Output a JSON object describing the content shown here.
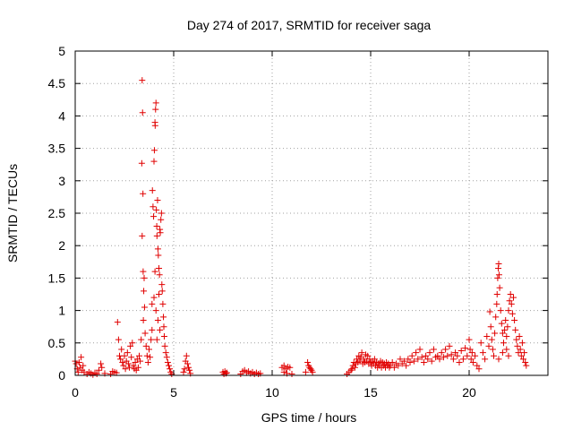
{
  "chart_data": {
    "type": "scatter",
    "title": "Day 274 of 2017, SRMTID for receiver saga",
    "xlabel": "GPS time / hours",
    "ylabel": "SRMTID / TECUs",
    "xlim": [
      0,
      24
    ],
    "ylim": [
      0,
      5
    ],
    "x_ticks": [
      "0",
      "5",
      "10",
      "15",
      "20"
    ],
    "y_ticks": [
      "0",
      "0.5",
      "1",
      "1.5",
      "2",
      "2.5",
      "3",
      "3.5",
      "4",
      "4.5",
      "5"
    ],
    "grid": true,
    "marker": "plus",
    "color": "#e00000",
    "series": [
      {
        "points": [
          [
            0.0,
            0.22
          ],
          [
            0.05,
            0.18
          ],
          [
            0.1,
            0.1
          ],
          [
            0.15,
            0.05
          ],
          [
            0.2,
            0.2
          ],
          [
            0.25,
            0.12
          ],
          [
            0.3,
            0.28
          ],
          [
            0.35,
            0.08
          ],
          [
            0.4,
            0.15
          ],
          [
            0.45,
            0.05
          ],
          [
            0.6,
            0.02
          ],
          [
            0.7,
            0.05
          ],
          [
            0.8,
            0.03
          ],
          [
            0.9,
            0.01
          ],
          [
            1.0,
            0.04
          ],
          [
            1.1,
            0.02
          ],
          [
            1.2,
            0.08
          ],
          [
            1.3,
            0.18
          ],
          [
            1.35,
            0.12
          ],
          [
            1.5,
            0.03
          ],
          [
            1.8,
            0.02
          ],
          [
            1.9,
            0.06
          ],
          [
            2.0,
            0.05
          ],
          [
            2.1,
            0.04
          ],
          [
            2.15,
            0.82
          ],
          [
            2.2,
            0.55
          ],
          [
            2.25,
            0.3
          ],
          [
            2.3,
            0.25
          ],
          [
            2.35,
            0.4
          ],
          [
            2.4,
            0.2
          ],
          [
            2.45,
            0.15
          ],
          [
            2.5,
            0.3
          ],
          [
            2.55,
            0.1
          ],
          [
            2.6,
            0.22
          ],
          [
            2.65,
            0.35
          ],
          [
            2.7,
            0.18
          ],
          [
            2.75,
            0.12
          ],
          [
            2.8,
            0.45
          ],
          [
            2.85,
            0.28
          ],
          [
            2.9,
            0.5
          ],
          [
            2.95,
            0.15
          ],
          [
            3.0,
            0.1
          ],
          [
            3.05,
            0.2
          ],
          [
            3.1,
            0.08
          ],
          [
            3.15,
            0.25
          ],
          [
            3.2,
            0.12
          ],
          [
            3.25,
            0.3
          ],
          [
            3.3,
            0.22
          ],
          [
            3.35,
            0.55
          ],
          [
            3.4,
            4.55
          ],
          [
            3.42,
            4.05
          ],
          [
            3.38,
            3.27
          ],
          [
            3.44,
            2.8
          ],
          [
            3.4,
            2.15
          ],
          [
            3.45,
            1.6
          ],
          [
            3.5,
            1.5
          ],
          [
            3.48,
            1.3
          ],
          [
            3.52,
            1.05
          ],
          [
            3.46,
            0.85
          ],
          [
            3.55,
            0.65
          ],
          [
            3.6,
            0.45
          ],
          [
            3.65,
            0.3
          ],
          [
            3.7,
            0.2
          ],
          [
            3.75,
            0.4
          ],
          [
            3.8,
            0.28
          ],
          [
            3.85,
            0.55
          ],
          [
            3.9,
            0.7
          ],
          [
            3.92,
            2.85
          ],
          [
            3.95,
            2.6
          ],
          [
            3.98,
            2.45
          ],
          [
            4.0,
            3.3
          ],
          [
            4.02,
            3.47
          ],
          [
            4.05,
            3.9
          ],
          [
            4.08,
            4.1
          ],
          [
            4.1,
            4.2
          ],
          [
            4.06,
            3.85
          ],
          [
            4.12,
            2.55
          ],
          [
            4.14,
            2.3
          ],
          [
            4.15,
            2.15
          ],
          [
            4.18,
            2.7
          ],
          [
            4.2,
            1.95
          ],
          [
            4.22,
            1.85
          ],
          [
            4.25,
            1.65
          ],
          [
            4.28,
            1.55
          ],
          [
            4.3,
            2.25
          ],
          [
            4.32,
            2.2
          ],
          [
            4.35,
            2.4
          ],
          [
            4.38,
            2.5
          ],
          [
            4.4,
            1.4
          ],
          [
            4.42,
            1.3
          ],
          [
            4.45,
            1.1
          ],
          [
            4.48,
            0.9
          ],
          [
            4.5,
            0.75
          ],
          [
            4.52,
            0.6
          ],
          [
            4.55,
            0.45
          ],
          [
            4.6,
            0.35
          ],
          [
            4.65,
            0.28
          ],
          [
            4.7,
            0.2
          ],
          [
            4.75,
            0.15
          ],
          [
            4.8,
            0.1
          ],
          [
            4.85,
            0.05
          ],
          [
            4.9,
            0.02
          ],
          [
            4.0,
            1.2
          ],
          [
            4.1,
            1.0
          ],
          [
            4.2,
            0.85
          ],
          [
            4.3,
            0.7
          ],
          [
            3.9,
            1.1
          ],
          [
            4.05,
            1.6
          ],
          [
            4.25,
            1.25
          ],
          [
            4.15,
            0.55
          ],
          [
            5.5,
            0.05
          ],
          [
            5.55,
            0.1
          ],
          [
            5.6,
            0.22
          ],
          [
            5.65,
            0.3
          ],
          [
            5.7,
            0.18
          ],
          [
            5.75,
            0.12
          ],
          [
            5.8,
            0.08
          ],
          [
            5.85,
            0.03
          ],
          [
            7.5,
            0.05
          ],
          [
            7.55,
            0.02
          ],
          [
            7.6,
            0.06
          ],
          [
            7.65,
            0.03
          ],
          [
            7.7,
            0.04
          ],
          [
            8.4,
            0.02
          ],
          [
            8.5,
            0.06
          ],
          [
            8.6,
            0.08
          ],
          [
            8.7,
            0.04
          ],
          [
            8.8,
            0.06
          ],
          [
            8.9,
            0.03
          ],
          [
            9.0,
            0.05
          ],
          [
            9.1,
            0.02
          ],
          [
            9.2,
            0.04
          ],
          [
            9.3,
            0.02
          ],
          [
            9.4,
            0.03
          ],
          [
            10.5,
            0.12
          ],
          [
            10.6,
            0.15
          ],
          [
            10.7,
            0.1
          ],
          [
            10.8,
            0.13
          ],
          [
            10.9,
            0.12
          ],
          [
            10.6,
            0.05
          ],
          [
            10.75,
            0.03
          ],
          [
            11.0,
            0.02
          ],
          [
            11.8,
            0.2
          ],
          [
            11.85,
            0.15
          ],
          [
            11.9,
            0.12
          ],
          [
            11.95,
            0.1
          ],
          [
            12.0,
            0.08
          ],
          [
            12.05,
            0.05
          ],
          [
            11.7,
            0.05
          ],
          [
            13.8,
            0.02
          ],
          [
            13.9,
            0.05
          ],
          [
            14.0,
            0.08
          ],
          [
            14.05,
            0.1
          ],
          [
            14.1,
            0.15
          ],
          [
            14.15,
            0.2
          ],
          [
            14.2,
            0.12
          ],
          [
            14.25,
            0.18
          ],
          [
            14.3,
            0.25
          ],
          [
            14.35,
            0.2
          ],
          [
            14.4,
            0.3
          ],
          [
            14.45,
            0.22
          ],
          [
            14.5,
            0.28
          ],
          [
            14.55,
            0.35
          ],
          [
            14.6,
            0.18
          ],
          [
            14.65,
            0.25
          ],
          [
            14.7,
            0.2
          ],
          [
            14.75,
            0.32
          ],
          [
            14.8,
            0.22
          ],
          [
            14.85,
            0.3
          ],
          [
            14.9,
            0.18
          ],
          [
            14.95,
            0.25
          ],
          [
            15.0,
            0.2
          ],
          [
            15.05,
            0.15
          ],
          [
            15.1,
            0.22
          ],
          [
            15.15,
            0.18
          ],
          [
            15.2,
            0.25
          ],
          [
            15.25,
            0.15
          ],
          [
            15.3,
            0.2
          ],
          [
            15.35,
            0.12
          ],
          [
            15.4,
            0.18
          ],
          [
            15.45,
            0.15
          ],
          [
            15.5,
            0.22
          ],
          [
            15.55,
            0.12
          ],
          [
            15.6,
            0.2
          ],
          [
            15.65,
            0.15
          ],
          [
            15.7,
            0.18
          ],
          [
            15.75,
            0.12
          ],
          [
            15.8,
            0.2
          ],
          [
            15.85,
            0.15
          ],
          [
            15.9,
            0.18
          ],
          [
            15.95,
            0.12
          ],
          [
            16.0,
            0.15
          ],
          [
            16.1,
            0.2
          ],
          [
            16.2,
            0.12
          ],
          [
            16.3,
            0.18
          ],
          [
            16.4,
            0.15
          ],
          [
            16.5,
            0.25
          ],
          [
            16.6,
            0.18
          ],
          [
            16.7,
            0.22
          ],
          [
            16.8,
            0.15
          ],
          [
            16.9,
            0.25
          ],
          [
            17.0,
            0.2
          ],
          [
            17.1,
            0.3
          ],
          [
            17.2,
            0.22
          ],
          [
            17.3,
            0.35
          ],
          [
            17.4,
            0.25
          ],
          [
            17.5,
            0.4
          ],
          [
            17.6,
            0.28
          ],
          [
            17.7,
            0.2
          ],
          [
            17.8,
            0.3
          ],
          [
            17.9,
            0.25
          ],
          [
            18.0,
            0.35
          ],
          [
            18.1,
            0.22
          ],
          [
            18.2,
            0.4
          ],
          [
            18.3,
            0.28
          ],
          [
            18.4,
            0.3
          ],
          [
            18.5,
            0.25
          ],
          [
            18.6,
            0.35
          ],
          [
            18.7,
            0.28
          ],
          [
            18.8,
            0.4
          ],
          [
            18.9,
            0.3
          ],
          [
            19.0,
            0.45
          ],
          [
            19.1,
            0.32
          ],
          [
            19.2,
            0.25
          ],
          [
            19.3,
            0.35
          ],
          [
            19.4,
            0.3
          ],
          [
            19.5,
            0.2
          ],
          [
            19.6,
            0.38
          ],
          [
            19.7,
            0.25
          ],
          [
            19.8,
            0.42
          ],
          [
            19.9,
            0.3
          ],
          [
            20.0,
            0.55
          ],
          [
            20.05,
            0.4
          ],
          [
            20.1,
            0.25
          ],
          [
            20.15,
            0.35
          ],
          [
            20.2,
            0.2
          ],
          [
            20.3,
            0.3
          ],
          [
            20.4,
            0.15
          ],
          [
            20.5,
            0.1
          ],
          [
            20.6,
            0.5
          ],
          [
            20.7,
            0.35
          ],
          [
            20.8,
            0.25
          ],
          [
            20.9,
            0.6
          ],
          [
            21.0,
            0.45
          ],
          [
            21.05,
            0.98
          ],
          [
            21.1,
            0.75
          ],
          [
            21.15,
            0.55
          ],
          [
            21.2,
            0.4
          ],
          [
            21.25,
            0.3
          ],
          [
            21.3,
            0.65
          ],
          [
            21.35,
            0.9
          ],
          [
            21.4,
            1.1
          ],
          [
            21.42,
            1.25
          ],
          [
            21.45,
            1.5
          ],
          [
            21.48,
            1.65
          ],
          [
            21.5,
            1.72
          ],
          [
            21.52,
            1.55
          ],
          [
            21.55,
            1.35
          ],
          [
            21.6,
            1.0
          ],
          [
            21.65,
            0.8
          ],
          [
            21.7,
            0.65
          ],
          [
            21.75,
            0.5
          ],
          [
            21.8,
            0.7
          ],
          [
            21.85,
            0.85
          ],
          [
            21.9,
            0.6
          ],
          [
            21.95,
            0.75
          ],
          [
            22.0,
            1.0
          ],
          [
            22.05,
            1.15
          ],
          [
            22.1,
            1.25
          ],
          [
            22.15,
            1.1
          ],
          [
            22.2,
            0.95
          ],
          [
            22.25,
            1.2
          ],
          [
            22.3,
            0.85
          ],
          [
            22.35,
            0.7
          ],
          [
            22.4,
            0.55
          ],
          [
            22.45,
            0.45
          ],
          [
            22.5,
            0.35
          ],
          [
            22.55,
            0.6
          ],
          [
            22.6,
            0.4
          ],
          [
            22.65,
            0.3
          ],
          [
            22.7,
            0.5
          ],
          [
            22.75,
            0.25
          ],
          [
            22.8,
            0.35
          ],
          [
            22.85,
            0.2
          ],
          [
            22.9,
            0.15
          ],
          [
            21.7,
            0.35
          ],
          [
            21.9,
            0.4
          ],
          [
            22.0,
            0.3
          ],
          [
            21.5,
            0.25
          ]
        ]
      }
    ]
  }
}
